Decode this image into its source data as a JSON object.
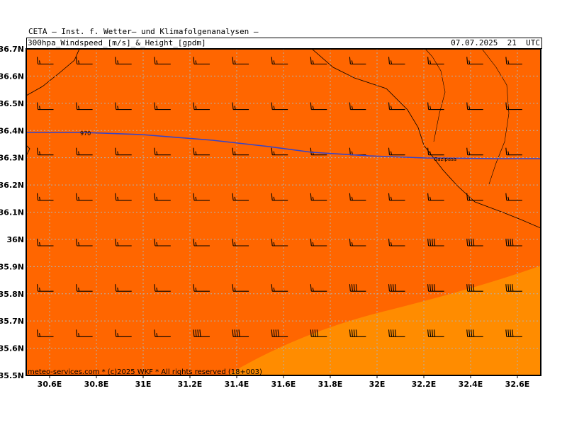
{
  "header": {
    "title": "CETA – Inst. f. Wetter– und Klimafolgenanalysen –",
    "product": "300hpa_Windspeed_[m/s]_&_Height_[gpdm]",
    "valid_time": "07.07.2025  21  UTC"
  },
  "map": {
    "lon_range": [
      30.5,
      32.7
    ],
    "lat_range": [
      35.5,
      36.7
    ],
    "x_ticks": [
      "30.6E",
      "30.8E",
      "31E",
      "31.2E",
      "31.4E",
      "31.6E",
      "31.8E",
      "32E",
      "32.2E",
      "32.4E",
      "32.6E"
    ],
    "y_ticks": [
      "36.7N",
      "36.6N",
      "36.5N",
      "36.4N",
      "36.3N",
      "36.2N",
      "36.1N",
      "36N",
      "35.9N",
      "35.8N",
      "35.7N",
      "35.6N",
      "35.5N"
    ],
    "height_contour_label": "970",
    "city_label": "Gazipasa",
    "credit": "meteo-services.com * (c)2025 WKF * All rights reserved (18+003)",
    "colors": {
      "wind_band_strong": "#ff6600",
      "wind_band_stronger": "#ff8c00",
      "height_contour": "#3344cc",
      "grid": "#b0b0b0",
      "coastline": "#000000"
    }
  }
}
